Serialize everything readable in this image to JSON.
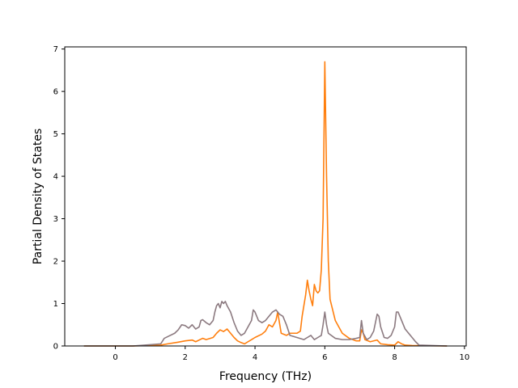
{
  "chart_data": {
    "type": "line",
    "title": "",
    "xlabel": "Frequency (THz)",
    "ylabel": "Partial Density of States",
    "xlim": [
      -1.45,
      10.05
    ],
    "ylim": [
      0,
      7.05
    ],
    "xticks": [
      0,
      2,
      4,
      6,
      8,
      10
    ],
    "yticks": [
      0,
      1,
      2,
      3,
      4,
      5,
      6,
      7
    ],
    "grid": false,
    "legend": "none",
    "series": [
      {
        "color": "#ff7f0e",
        "points": [
          [
            -0.9,
            0
          ],
          [
            0.5,
            0.0
          ],
          [
            1.3,
            0.02
          ],
          [
            1.5,
            0.05
          ],
          [
            1.8,
            0.09
          ],
          [
            2.0,
            0.12
          ],
          [
            2.2,
            0.14
          ],
          [
            2.3,
            0.1
          ],
          [
            2.5,
            0.18
          ],
          [
            2.6,
            0.15
          ],
          [
            2.8,
            0.2
          ],
          [
            2.9,
            0.3
          ],
          [
            3.0,
            0.38
          ],
          [
            3.1,
            0.34
          ],
          [
            3.2,
            0.4
          ],
          [
            3.3,
            0.3
          ],
          [
            3.4,
            0.2
          ],
          [
            3.5,
            0.12
          ],
          [
            3.6,
            0.08
          ],
          [
            3.7,
            0.05
          ],
          [
            3.8,
            0.1
          ],
          [
            3.9,
            0.15
          ],
          [
            4.0,
            0.2
          ],
          [
            4.2,
            0.28
          ],
          [
            4.3,
            0.35
          ],
          [
            4.4,
            0.5
          ],
          [
            4.5,
            0.45
          ],
          [
            4.6,
            0.6
          ],
          [
            4.65,
            0.8
          ],
          [
            4.7,
            0.55
          ],
          [
            4.75,
            0.3
          ],
          [
            4.9,
            0.25
          ],
          [
            5.0,
            0.3
          ],
          [
            5.2,
            0.3
          ],
          [
            5.3,
            0.35
          ],
          [
            5.35,
            0.7
          ],
          [
            5.45,
            1.2
          ],
          [
            5.5,
            1.55
          ],
          [
            5.55,
            1.3
          ],
          [
            5.6,
            1.1
          ],
          [
            5.65,
            0.95
          ],
          [
            5.7,
            1.45
          ],
          [
            5.75,
            1.3
          ],
          [
            5.8,
            1.25
          ],
          [
            5.85,
            1.3
          ],
          [
            5.9,
            1.8
          ],
          [
            5.95,
            3.0
          ],
          [
            6.0,
            6.7
          ],
          [
            6.05,
            4.0
          ],
          [
            6.1,
            2.0
          ],
          [
            6.15,
            1.1
          ],
          [
            6.3,
            0.6
          ],
          [
            6.5,
            0.3
          ],
          [
            6.7,
            0.18
          ],
          [
            6.9,
            0.12
          ],
          [
            7.0,
            0.12
          ],
          [
            7.05,
            0.38
          ],
          [
            7.1,
            0.3
          ],
          [
            7.15,
            0.15
          ],
          [
            7.3,
            0.1
          ],
          [
            7.5,
            0.14
          ],
          [
            7.6,
            0.05
          ],
          [
            7.8,
            0.03
          ],
          [
            8.0,
            0.02
          ],
          [
            8.1,
            0.1
          ],
          [
            8.2,
            0.05
          ],
          [
            8.3,
            0.02
          ],
          [
            8.5,
            0.01
          ],
          [
            9.5,
            0.0
          ]
        ]
      },
      {
        "color": "#8c7a80",
        "points": [
          [
            -0.9,
            0
          ],
          [
            0.5,
            0.0
          ],
          [
            1.3,
            0.05
          ],
          [
            1.4,
            0.18
          ],
          [
            1.5,
            0.22
          ],
          [
            1.7,
            0.3
          ],
          [
            1.8,
            0.38
          ],
          [
            1.9,
            0.5
          ],
          [
            2.0,
            0.48
          ],
          [
            2.1,
            0.42
          ],
          [
            2.2,
            0.5
          ],
          [
            2.3,
            0.4
          ],
          [
            2.4,
            0.45
          ],
          [
            2.45,
            0.6
          ],
          [
            2.5,
            0.62
          ],
          [
            2.6,
            0.55
          ],
          [
            2.7,
            0.5
          ],
          [
            2.8,
            0.6
          ],
          [
            2.85,
            0.8
          ],
          [
            2.9,
            0.95
          ],
          [
            2.95,
            1.0
          ],
          [
            3.0,
            0.9
          ],
          [
            3.05,
            1.05
          ],
          [
            3.1,
            1.0
          ],
          [
            3.15,
            1.05
          ],
          [
            3.2,
            0.95
          ],
          [
            3.3,
            0.8
          ],
          [
            3.4,
            0.55
          ],
          [
            3.5,
            0.35
          ],
          [
            3.6,
            0.25
          ],
          [
            3.7,
            0.3
          ],
          [
            3.8,
            0.45
          ],
          [
            3.9,
            0.6
          ],
          [
            3.95,
            0.85
          ],
          [
            4.0,
            0.8
          ],
          [
            4.1,
            0.6
          ],
          [
            4.2,
            0.55
          ],
          [
            4.3,
            0.6
          ],
          [
            4.4,
            0.7
          ],
          [
            4.5,
            0.8
          ],
          [
            4.6,
            0.85
          ],
          [
            4.7,
            0.75
          ],
          [
            4.8,
            0.7
          ],
          [
            4.9,
            0.5
          ],
          [
            5.0,
            0.25
          ],
          [
            5.2,
            0.2
          ],
          [
            5.4,
            0.15
          ],
          [
            5.5,
            0.2
          ],
          [
            5.6,
            0.25
          ],
          [
            5.7,
            0.15
          ],
          [
            5.8,
            0.2
          ],
          [
            5.9,
            0.25
          ],
          [
            5.95,
            0.5
          ],
          [
            6.0,
            0.8
          ],
          [
            6.05,
            0.5
          ],
          [
            6.1,
            0.3
          ],
          [
            6.3,
            0.18
          ],
          [
            6.5,
            0.15
          ],
          [
            6.7,
            0.15
          ],
          [
            6.9,
            0.18
          ],
          [
            7.0,
            0.2
          ],
          [
            7.05,
            0.6
          ],
          [
            7.1,
            0.3
          ],
          [
            7.2,
            0.15
          ],
          [
            7.3,
            0.2
          ],
          [
            7.4,
            0.35
          ],
          [
            7.5,
            0.75
          ],
          [
            7.55,
            0.7
          ],
          [
            7.6,
            0.45
          ],
          [
            7.7,
            0.2
          ],
          [
            7.8,
            0.18
          ],
          [
            7.9,
            0.25
          ],
          [
            8.0,
            0.45
          ],
          [
            8.05,
            0.8
          ],
          [
            8.1,
            0.8
          ],
          [
            8.2,
            0.6
          ],
          [
            8.3,
            0.4
          ],
          [
            8.4,
            0.3
          ],
          [
            8.5,
            0.2
          ],
          [
            8.6,
            0.1
          ],
          [
            8.7,
            0.02
          ],
          [
            9.5,
            0.0
          ]
        ]
      }
    ]
  }
}
